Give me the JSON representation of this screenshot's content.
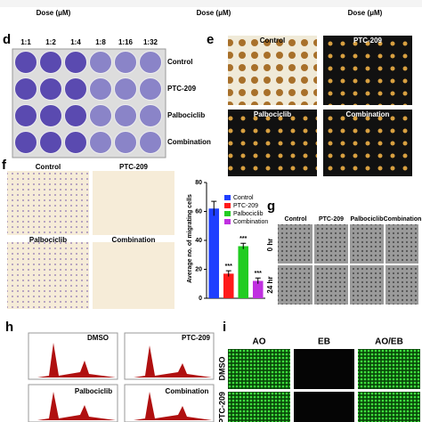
{
  "top": {
    "dose_labels": [
      "Dose (μM)",
      "Dose (μM)",
      "Dose (μM)"
    ]
  },
  "panels": {
    "d": {
      "letter": "d",
      "columns": [
        "1:1",
        "1:2",
        "1:4",
        "1:8",
        "1:16",
        "1:32"
      ],
      "rows": [
        "Control",
        "PTC-209",
        "Palbociclib",
        "Combination"
      ]
    },
    "e": {
      "letter": "e",
      "labels": [
        "Control",
        "PTC-209",
        "Palbociclib",
        "Combination"
      ]
    },
    "f": {
      "letter": "f",
      "labels": [
        "Control",
        "PTC-209",
        "Palbociclib",
        "Combination"
      ]
    },
    "g": {
      "letter": "g",
      "columns": [
        "Control",
        "PTC-209",
        "Palbociclib",
        "Combination"
      ],
      "rows": [
        "0 hr",
        "24 hr"
      ]
    },
    "h": {
      "letter": "h",
      "labels": [
        "DMSO",
        "PTC-209",
        "Palbociclib",
        "Combination"
      ]
    },
    "i": {
      "letter": "i",
      "columns": [
        "AO",
        "EB",
        "AO/EB"
      ],
      "rows": [
        "DMSO",
        "PTC-209"
      ]
    }
  },
  "chart_data": {
    "type": "bar",
    "y_label": "Average no. of migrating cells",
    "categories": [
      "Control",
      "PTC-209",
      "Palbociclib",
      "Combination"
    ],
    "values": [
      62,
      17,
      36,
      12
    ],
    "errors": [
      5,
      2,
      2,
      2
    ],
    "colors": [
      "#1f3fff",
      "#ff1a1a",
      "#22cc22",
      "#c030e0"
    ],
    "significance": [
      null,
      "***",
      "***",
      "***"
    ],
    "ylim": [
      0,
      80
    ],
    "yticks": [
      0,
      20,
      40,
      60,
      80
    ]
  }
}
